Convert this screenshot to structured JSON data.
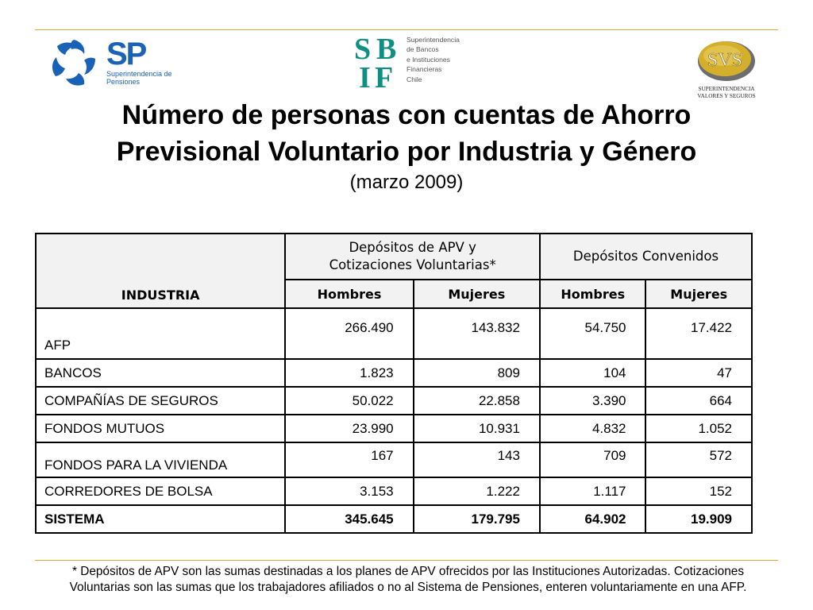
{
  "logos": {
    "sp": {
      "letters": "SP",
      "caption": "Superintendencia de Pensiones",
      "brand_color": "#1a62b8"
    },
    "sbif": {
      "letters": [
        "S",
        "B",
        "I",
        "F"
      ],
      "caption": [
        "Superintendencia",
        "de Bancos",
        "e Instituciones",
        "Financieras",
        "Chile"
      ],
      "brand_color": "#0f8f84"
    },
    "svs": {
      "letters": "SVS",
      "caption": [
        "SUPERINTENDENCIA",
        "VALORES Y SEGUROS"
      ],
      "brand_color": "#c9a227"
    }
  },
  "title_line1": "Número de personas con cuentas de Ahorro",
  "title_line2": "Previsional Voluntario por Industria y Género",
  "subtitle": "(marzo 2009)",
  "table": {
    "col_industry": "INDUSTRIA",
    "group_apv_line1": "Depósitos de APV y",
    "group_apv_line2": "Cotizaciones Voluntarias*",
    "group_conv": "Depósitos Convenidos",
    "sub_hombres": "Hombres",
    "sub_mujeres": "Mujeres",
    "rows": [
      {
        "industria": "AFP",
        "apv_h": "266.490",
        "apv_m": "143.832",
        "conv_h": "54.750",
        "conv_m": "17.422"
      },
      {
        "industria": "BANCOS",
        "apv_h": "1.823",
        "apv_m": "809",
        "conv_h": "104",
        "conv_m": "47"
      },
      {
        "industria": "COMPAÑÍAS DE SEGUROS",
        "apv_h": "50.022",
        "apv_m": "22.858",
        "conv_h": "3.390",
        "conv_m": "664"
      },
      {
        "industria": "FONDOS MUTUOS",
        "apv_h": "23.990",
        "apv_m": "10.931",
        "conv_h": "4.832",
        "conv_m": "1.052"
      },
      {
        "industria": "FONDOS PARA LA VIVIENDA",
        "apv_h": "167",
        "apv_m": "143",
        "conv_h": "709",
        "conv_m": "572"
      },
      {
        "industria": "CORREDORES DE BOLSA",
        "apv_h": "3.153",
        "apv_m": "1.222",
        "conv_h": "1.117",
        "conv_m": "152"
      },
      {
        "industria": "SISTEMA",
        "apv_h": "345.645",
        "apv_m": "179.795",
        "conv_h": "64.902",
        "conv_m": "19.909"
      }
    ]
  },
  "footnote_line1": "* Depósitos de APV son las sumas destinadas a los planes de APV ofrecidos por las Instituciones Autorizadas. Cotizaciones",
  "footnote_line2": "Voluntarias son las sumas que los trabajadores afiliados o no al Sistema de Pensiones, enteren voluntariamente en una AFP.",
  "colors": {
    "rule": "#e8a53a",
    "header_bg": "#f2f2f2"
  }
}
